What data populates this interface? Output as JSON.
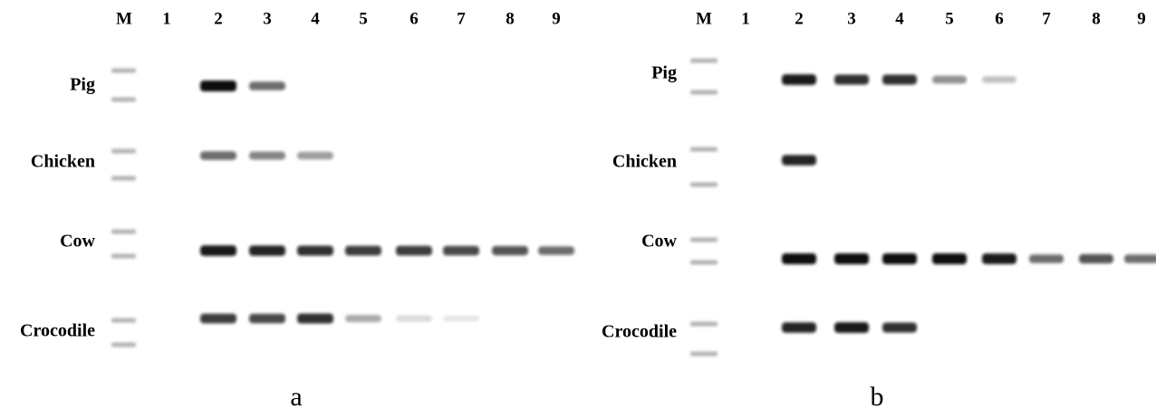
{
  "panels": [
    {
      "lanes": [
        "M",
        "1",
        "2",
        "3",
        "4",
        "5",
        "6",
        "7",
        "8",
        "9"
      ],
      "rows": [
        "Pig",
        "Chicken",
        "Cow",
        "Crocodile"
      ],
      "caption": "a"
    },
    {
      "lanes": [
        "M",
        "1",
        "2",
        "3",
        "4",
        "5",
        "6",
        "7",
        "8",
        "9"
      ],
      "rows": [
        "Pig",
        "Chicken",
        "Cow",
        "Crocodile"
      ],
      "caption": "b"
    }
  ]
}
